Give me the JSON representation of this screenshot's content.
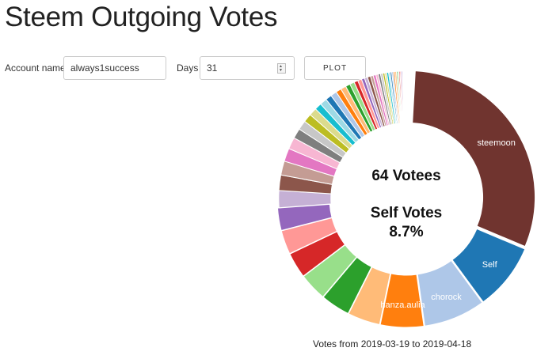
{
  "app": {
    "title": "Steem Outgoing Votes"
  },
  "form": {
    "account_label": "Account name",
    "account_value": "always1success",
    "days_label": "Days",
    "days_value": "31",
    "plot_label": "PLOT"
  },
  "chart_data": {
    "type": "pie",
    "center_lines": [
      "64 Votees",
      "Self Votes",
      "8.7%"
    ],
    "slices": [
      {
        "label": "steemoon",
        "percent": 31.0,
        "color": "#70342f"
      },
      {
        "label": "Self",
        "percent": 8.7,
        "color": "#1f77b4"
      },
      {
        "label": "chorock",
        "percent": 8.0,
        "color": "#aec7e8"
      },
      {
        "label": "hanza.aulia",
        "percent": 5.6,
        "color": "#ff7f0e"
      },
      {
        "label": "",
        "percent": 4.2,
        "color": "#ffbb78"
      },
      {
        "label": "",
        "percent": 3.8,
        "color": "#2ca02c"
      },
      {
        "label": "",
        "percent": 3.6,
        "color": "#98df8a"
      },
      {
        "label": "",
        "percent": 3.3,
        "color": "#d62728"
      },
      {
        "label": "",
        "percent": 3.1,
        "color": "#ff9896"
      },
      {
        "label": "",
        "percent": 2.9,
        "color": "#9467bd"
      },
      {
        "label": "",
        "percent": 2.2,
        "color": "#c5b0d5"
      },
      {
        "label": "",
        "percent": 2.0,
        "color": "#8c564b"
      },
      {
        "label": "",
        "percent": 1.8,
        "color": "#c49c94"
      },
      {
        "label": "",
        "percent": 1.7,
        "color": "#e377c2"
      },
      {
        "label": "",
        "percent": 1.5,
        "color": "#f7b6d2"
      },
      {
        "label": "",
        "percent": 1.3,
        "color": "#7f7f7f"
      },
      {
        "label": "",
        "percent": 1.2,
        "color": "#c7c7c7"
      },
      {
        "label": "",
        "percent": 1.1,
        "color": "#bcbd22"
      },
      {
        "label": "",
        "percent": 1.0,
        "color": "#dbdb8d"
      },
      {
        "label": "",
        "percent": 0.9,
        "color": "#17becf"
      },
      {
        "label": "",
        "percent": 0.9,
        "color": "#9edae5"
      },
      {
        "label": "",
        "percent": 0.8,
        "color": "#1f77b4"
      },
      {
        "label": "",
        "percent": 0.8,
        "color": "#aec7e8"
      },
      {
        "label": "",
        "percent": 0.7,
        "color": "#ff7f0e"
      },
      {
        "label": "",
        "percent": 0.7,
        "color": "#ffbb78"
      },
      {
        "label": "",
        "percent": 0.6,
        "color": "#2ca02c"
      },
      {
        "label": "",
        "percent": 0.6,
        "color": "#98df8a"
      },
      {
        "label": "",
        "percent": 0.5,
        "color": "#d62728"
      },
      {
        "label": "",
        "percent": 0.5,
        "color": "#ff9896"
      },
      {
        "label": "",
        "percent": 0.4,
        "color": "#9467bd"
      },
      {
        "label": "",
        "percent": 0.4,
        "color": "#c5b0d5"
      },
      {
        "label": "",
        "percent": 0.4,
        "color": "#8c564b"
      },
      {
        "label": "",
        "percent": 0.35,
        "color": "#c49c94"
      },
      {
        "label": "",
        "percent": 0.35,
        "color": "#e377c2"
      },
      {
        "label": "",
        "percent": 0.3,
        "color": "#f7b6d2"
      },
      {
        "label": "",
        "percent": 0.3,
        "color": "#7f7f7f"
      },
      {
        "label": "",
        "percent": 0.3,
        "color": "#c7c7c7"
      },
      {
        "label": "",
        "percent": 0.25,
        "color": "#bcbd22"
      },
      {
        "label": "",
        "percent": 0.25,
        "color": "#dbdb8d"
      },
      {
        "label": "",
        "percent": 0.25,
        "color": "#17becf"
      },
      {
        "label": "",
        "percent": 0.2,
        "color": "#9edae5"
      },
      {
        "label": "",
        "percent": 0.2,
        "color": "#1f77b4"
      },
      {
        "label": "",
        "percent": 0.2,
        "color": "#aec7e8"
      },
      {
        "label": "",
        "percent": 0.2,
        "color": "#ff7f0e"
      },
      {
        "label": "",
        "percent": 0.2,
        "color": "#ffbb78"
      },
      {
        "label": "",
        "percent": 0.15,
        "color": "#2ca02c"
      },
      {
        "label": "",
        "percent": 0.15,
        "color": "#98df8a"
      },
      {
        "label": "",
        "percent": 0.15,
        "color": "#d62728"
      },
      {
        "label": "",
        "percent": 0.15,
        "color": "#ff9896"
      },
      {
        "label": "",
        "percent": 0.15,
        "color": "#9467bd"
      },
      {
        "label": "",
        "percent": 0.1,
        "color": "#c5b0d5"
      },
      {
        "label": "",
        "percent": 0.1,
        "color": "#8c564b"
      },
      {
        "label": "",
        "percent": 0.1,
        "color": "#c49c94"
      },
      {
        "label": "",
        "percent": 0.1,
        "color": "#e377c2"
      },
      {
        "label": "",
        "percent": 0.1,
        "color": "#f7b6d2"
      },
      {
        "label": "",
        "percent": 0.1,
        "color": "#7f7f7f"
      },
      {
        "label": "",
        "percent": 0.1,
        "color": "#c7c7c7"
      },
      {
        "label": "",
        "percent": 0.1,
        "color": "#bcbd22"
      },
      {
        "label": "",
        "percent": 0.1,
        "color": "#dbdb8d"
      },
      {
        "label": "",
        "percent": 0.1,
        "color": "#17becf"
      },
      {
        "label": "",
        "percent": 0.1,
        "color": "#9edae5"
      },
      {
        "label": "",
        "percent": 0.1,
        "color": "#d62728"
      },
      {
        "label": "",
        "percent": 0.1,
        "color": "#ff9896"
      },
      {
        "label": "",
        "percent": 0.1,
        "color": "#d62728"
      }
    ],
    "caption": "Votes from 2019-03-19 to 2019-04-18"
  }
}
